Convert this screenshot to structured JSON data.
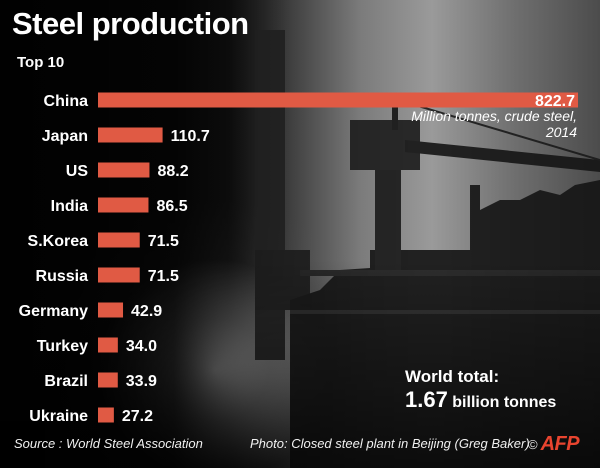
{
  "header": {
    "title": "Steel production",
    "subtitle": "Top 10"
  },
  "chart_data": {
    "type": "bar",
    "orientation": "horizontal",
    "title": "Steel production",
    "subtitle": "Top 10",
    "categories": [
      "China",
      "Japan",
      "US",
      "India",
      "S.Korea",
      "Russia",
      "Germany",
      "Turkey",
      "Brazil",
      "Ukraine"
    ],
    "values": [
      822.7,
      110.7,
      88.2,
      86.5,
      71.5,
      71.5,
      42.9,
      34.0,
      33.9,
      27.2
    ],
    "value_labels": [
      "822.7",
      "110.7",
      "88.2",
      "86.5",
      "71.5",
      "71.5",
      "42.9",
      "34.0",
      "33.9",
      "27.2"
    ],
    "unit_note": "Million tonnes, crude steel, 2014",
    "bar_color": "#e05a44",
    "xlim": [
      0,
      822.7
    ],
    "grid": false,
    "legend": "none"
  },
  "annotation": {
    "world_total_label": "World total:",
    "world_total_value": "1.67",
    "world_total_unit": "billion tonnes"
  },
  "footer": {
    "source": "Source : World Steel Association",
    "photo_credit": "Photo: Closed steel plant in Beijing (Greg Baker)",
    "copyright": "©",
    "logo_text": "AFP",
    "logo_color": "#e8442f"
  }
}
